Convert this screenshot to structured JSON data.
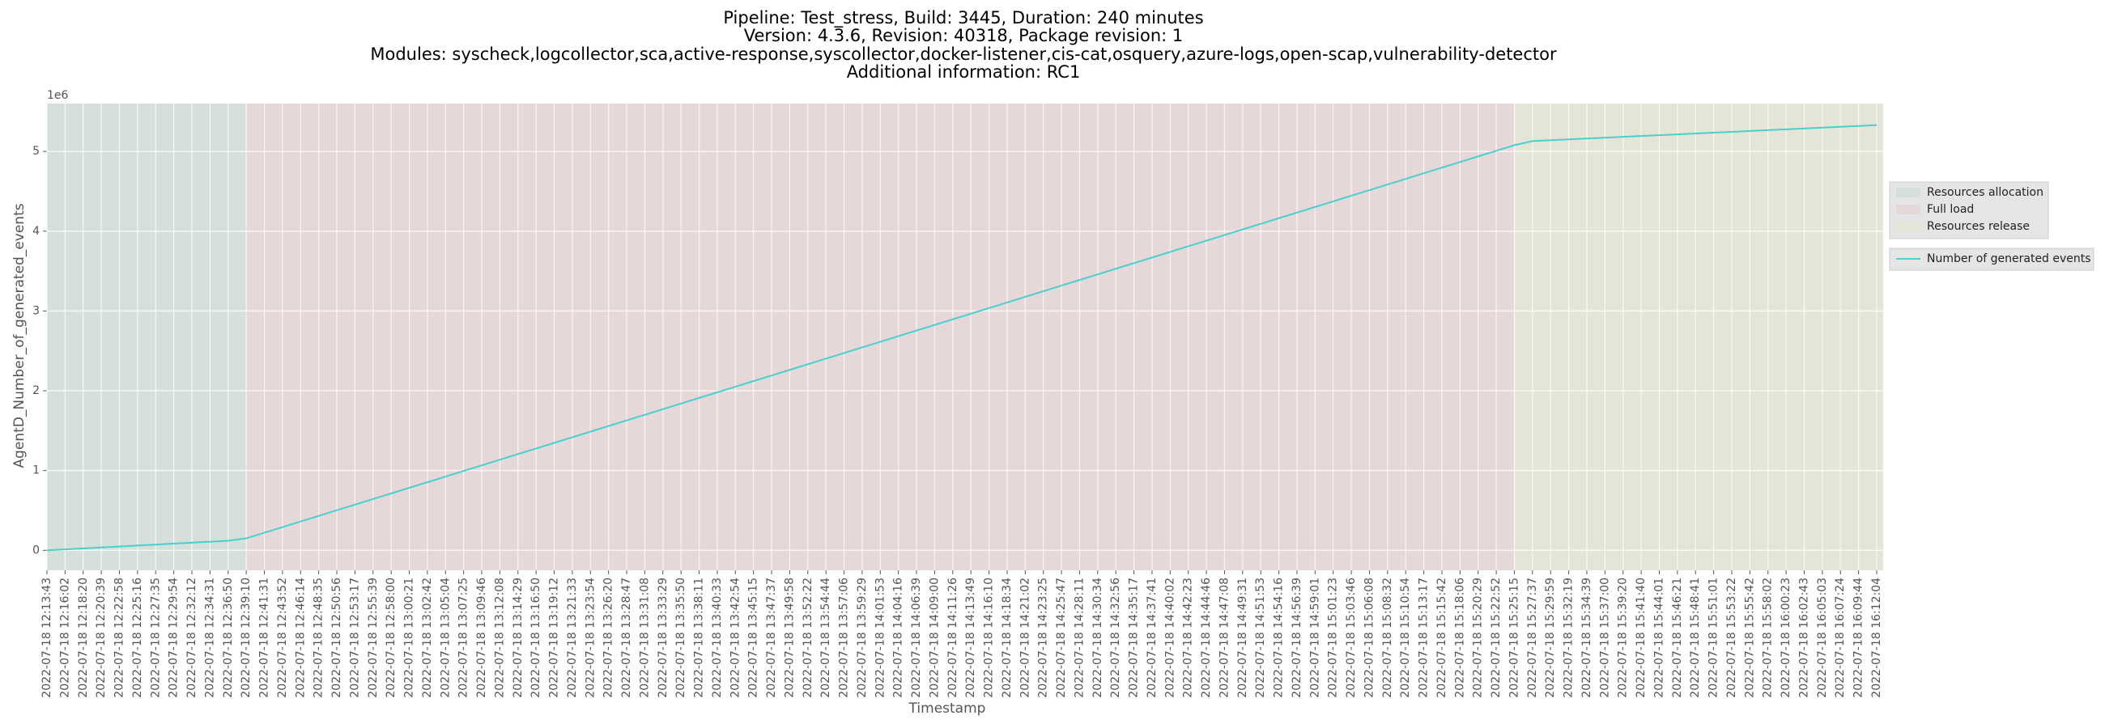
{
  "chart_data": {
    "type": "line",
    "title": [
      "Pipeline: Test_stress, Build: 3445, Duration: 240 minutes",
      "Version: 4.3.6, Revision: 40318, Package revision: 1",
      "Modules: syscheck,logcollector,sca,active-response,syscollector,docker-listener,cis-cat,osquery,azure-logs,open-scap,vulnerability-detector",
      "Additional information: RC1"
    ],
    "x_label": "Timestamp",
    "y_label": "AgentD_Number_of_generated_events",
    "y_offset_label": "1e6",
    "categories": [
      "2022-07-18 12:13:43",
      "2022-07-18 12:16:02",
      "2022-07-18 12:18:20",
      "2022-07-18 12:20:39",
      "2022-07-18 12:22:58",
      "2022-07-18 12:25:16",
      "2022-07-18 12:27:35",
      "2022-07-18 12:29:54",
      "2022-07-18 12:32:12",
      "2022-07-18 12:34:31",
      "2022-07-18 12:36:50",
      "2022-07-18 12:39:10",
      "2022-07-18 12:41:31",
      "2022-07-18 12:43:52",
      "2022-07-18 12:46:14",
      "2022-07-18 12:48:35",
      "2022-07-18 12:50:56",
      "2022-07-18 12:53:17",
      "2022-07-18 12:55:39",
      "2022-07-18 12:58:00",
      "2022-07-18 13:00:21",
      "2022-07-18 13:02:42",
      "2022-07-18 13:05:04",
      "2022-07-18 13:07:25",
      "2022-07-18 13:09:46",
      "2022-07-18 13:12:08",
      "2022-07-18 13:14:29",
      "2022-07-18 13:16:50",
      "2022-07-18 13:19:12",
      "2022-07-18 13:21:33",
      "2022-07-18 13:23:54",
      "2022-07-18 13:26:20",
      "2022-07-18 13:28:47",
      "2022-07-18 13:31:08",
      "2022-07-18 13:33:29",
      "2022-07-18 13:35:50",
      "2022-07-18 13:38:11",
      "2022-07-18 13:40:33",
      "2022-07-18 13:42:54",
      "2022-07-18 13:45:15",
      "2022-07-18 13:47:37",
      "2022-07-18 13:49:58",
      "2022-07-18 13:52:22",
      "2022-07-18 13:54:44",
      "2022-07-18 13:57:06",
      "2022-07-18 13:59:29",
      "2022-07-18 14:01:53",
      "2022-07-18 14:04:16",
      "2022-07-18 14:06:39",
      "2022-07-18 14:09:00",
      "2022-07-18 14:11:26",
      "2022-07-18 14:13:49",
      "2022-07-18 14:16:10",
      "2022-07-18 14:18:34",
      "2022-07-18 14:21:02",
      "2022-07-18 14:23:25",
      "2022-07-18 14:25:47",
      "2022-07-18 14:28:11",
      "2022-07-18 14:30:34",
      "2022-07-18 14:32:56",
      "2022-07-18 14:35:17",
      "2022-07-18 14:37:41",
      "2022-07-18 14:40:02",
      "2022-07-18 14:42:23",
      "2022-07-18 14:44:46",
      "2022-07-18 14:47:08",
      "2022-07-18 14:49:31",
      "2022-07-18 14:51:53",
      "2022-07-18 14:54:16",
      "2022-07-18 14:56:39",
      "2022-07-18 14:59:01",
      "2022-07-18 15:01:23",
      "2022-07-18 15:03:46",
      "2022-07-18 15:06:08",
      "2022-07-18 15:08:32",
      "2022-07-18 15:10:54",
      "2022-07-18 15:13:17",
      "2022-07-18 15:15:42",
      "2022-07-18 15:18:06",
      "2022-07-18 15:20:29",
      "2022-07-18 15:22:52",
      "2022-07-18 15:25:15",
      "2022-07-18 15:27:37",
      "2022-07-18 15:29:59",
      "2022-07-18 15:32:19",
      "2022-07-18 15:34:39",
      "2022-07-18 15:37:00",
      "2022-07-18 15:39:20",
      "2022-07-18 15:41:40",
      "2022-07-18 15:44:01",
      "2022-07-18 15:46:21",
      "2022-07-18 15:48:41",
      "2022-07-18 15:51:01",
      "2022-07-18 15:53:22",
      "2022-07-18 15:55:42",
      "2022-07-18 15:58:02",
      "2022-07-18 16:00:23",
      "2022-07-18 16:02:43",
      "2022-07-18 16:05:03",
      "2022-07-18 16:07:24",
      "2022-07-18 16:09:44",
      "2022-07-18 16:12:04"
    ],
    "series": [
      {
        "name": "Number of generated events",
        "color": "#48d1cc",
        "values": [
          0,
          12000,
          24000,
          36000,
          48000,
          60000,
          72000,
          84000,
          96000,
          108000,
          120000,
          150000,
          220400,
          290800,
          361200,
          431600,
          502000,
          572400,
          642800,
          713200,
          783600,
          854000,
          924400,
          994800,
          1065200,
          1135600,
          1206000,
          1276400,
          1346800,
          1417200,
          1487600,
          1558000,
          1628400,
          1698800,
          1769200,
          1839600,
          1910000,
          1980400,
          2050800,
          2121200,
          2191600,
          2262000,
          2332400,
          2402800,
          2473200,
          2543600,
          2614000,
          2684400,
          2754800,
          2825200,
          2895600,
          2966000,
          3036400,
          3106800,
          3177200,
          3247600,
          3318000,
          3388400,
          3458800,
          3529200,
          3599600,
          3670000,
          3740400,
          3810800,
          3881200,
          3951600,
          4022000,
          4092400,
          4162800,
          4233200,
          4303600,
          4374000,
          4444400,
          4514800,
          4585200,
          4655600,
          4726000,
          4796400,
          4866800,
          4937200,
          5007600,
          5078000,
          5130000,
          5140500,
          5151000,
          5161500,
          5172000,
          5182500,
          5193000,
          5203500,
          5214000,
          5224500,
          5235000,
          5245500,
          5256000,
          5266500,
          5277000,
          5287500,
          5298000,
          5308500,
          5319000,
          5329500
        ]
      }
    ],
    "regions": [
      {
        "name": "Resources allocation",
        "start": "2022-07-18 12:13:43",
        "end": "2022-07-18 12:39:10",
        "color": "#d6e0da"
      },
      {
        "name": "Full load",
        "start": "2022-07-18 12:39:10",
        "end": "2022-07-18 15:25:15",
        "color": "#e6d7d9"
      },
      {
        "name": "Resources release",
        "start": "2022-07-18 15:25:15",
        "end": "2022-07-18 16:12:04",
        "color": "#e5e5d7"
      }
    ],
    "ylim": [
      -250000,
      5600000
    ],
    "yticks": [
      0,
      {
        "value": 1000000,
        "label": "1"
      },
      {
        "value": 2000000,
        "label": "2"
      },
      {
        "value": 3000000,
        "label": "3"
      },
      {
        "value": 4000000,
        "label": "4"
      },
      {
        "value": 5000000,
        "label": "5"
      }
    ],
    "grid": true
  }
}
